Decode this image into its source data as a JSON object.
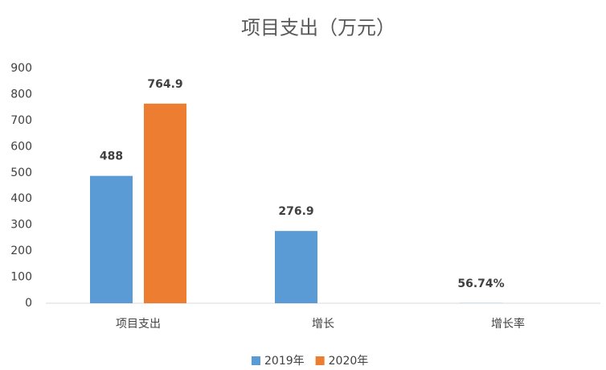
{
  "chart_data": {
    "type": "bar",
    "title": "项目支出（万元）",
    "categories": [
      "项目支出",
      "增长",
      "增长率"
    ],
    "series": [
      {
        "name": "2019年",
        "color": "#5b9bd5",
        "values": [
          488,
          276.9,
          0.5674
        ],
        "value_labels": [
          "488",
          "276.9",
          "56.74%"
        ]
      },
      {
        "name": "2020年",
        "color": "#ed7d31",
        "values": [
          764.9,
          null,
          null
        ],
        "value_labels": [
          "764.9",
          null,
          null
        ]
      }
    ],
    "ylim": [
      0,
      900
    ],
    "yticks": [
      0,
      100,
      200,
      300,
      400,
      500,
      600,
      700,
      800,
      900
    ],
    "grid": false,
    "legend": "bottom"
  }
}
